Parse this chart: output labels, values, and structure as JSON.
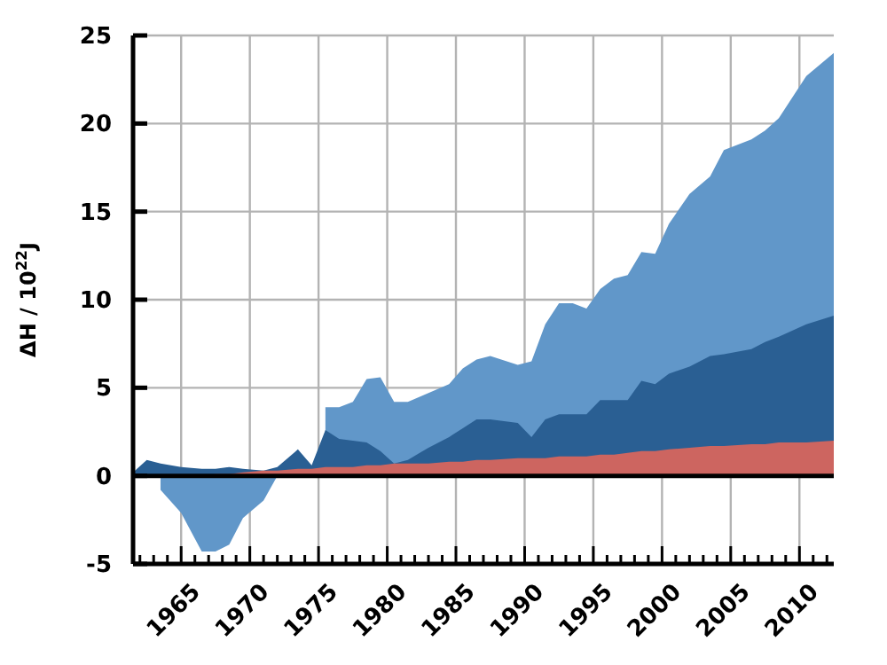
{
  "chart_data": {
    "type": "area",
    "ylabel": "ΔH / 10$^{22}$J",
    "x": [
      1961.5,
      1962.5,
      1963.5,
      1965,
      1966.5,
      1967.5,
      1968.5,
      1969.5,
      1971,
      1972,
      1973.5,
      1974.5,
      1975.5,
      1976.5,
      1977.5,
      1978.5,
      1979.5,
      1980.5,
      1981.5,
      1983,
      1984.5,
      1985.5,
      1986.5,
      1987.5,
      1989.5,
      1990.5,
      1991.5,
      1992.5,
      1993.5,
      1994.5,
      1995.5,
      1996.5,
      1997.5,
      1998.5,
      1999.5,
      2000.5,
      2002,
      2003.5,
      2004.5,
      2006.5,
      2007.5,
      2008.5,
      2010.5,
      2012.5
    ],
    "series": [
      {
        "color": "#6197c9",
        "values": [
          null,
          null,
          -0.8,
          -2.1,
          -4.3,
          -4.3,
          -3.9,
          -2.4,
          -1.4,
          0,
          1.5,
          null,
          3.9,
          3.9,
          4.2,
          5.5,
          5.6,
          4.2,
          4.2,
          4.7,
          5.2,
          6.1,
          6.6,
          6.8,
          6.3,
          6.5,
          8.6,
          9.8,
          9.8,
          9.5,
          10.6,
          11.2,
          11.4,
          12.7,
          12.6,
          14.3,
          16.0,
          17.0,
          18.5,
          19.1,
          19.6,
          20.3,
          22.7,
          24.0
        ]
      },
      {
        "color": "#2a5f93",
        "values": [
          0.2,
          0.9,
          0.7,
          0.5,
          0.4,
          0.4,
          0.5,
          0.4,
          0.3,
          0.5,
          1.5,
          0.6,
          2.6,
          2.1,
          2.0,
          1.9,
          1.4,
          0.7,
          0.9,
          1.6,
          2.2,
          2.7,
          3.2,
          3.2,
          3.0,
          2.2,
          3.2,
          3.5,
          3.5,
          3.5,
          4.3,
          4.3,
          4.3,
          5.4,
          5.2,
          5.8,
          6.2,
          6.8,
          6.9,
          7.2,
          7.6,
          7.9,
          8.6,
          9.1
        ]
      },
      {
        "color": "#cd6560",
        "values": [
          0.1,
          0,
          -0.1,
          0,
          0,
          0.1,
          0.1,
          0.2,
          0.3,
          0.3,
          0.4,
          0.4,
          0.5,
          0.5,
          0.5,
          0.6,
          0.6,
          0.7,
          0.7,
          0.7,
          0.8,
          0.8,
          0.9,
          0.9,
          1.0,
          1.0,
          1.0,
          1.1,
          1.1,
          1.1,
          1.2,
          1.2,
          1.3,
          1.4,
          1.4,
          1.5,
          1.6,
          1.7,
          1.7,
          1.8,
          1.8,
          1.9,
          1.9,
          2.0
        ]
      }
    ],
    "xlim": [
      1961.5,
      2012.5
    ],
    "xticks": [
      {
        "value": 1962,
        "label": null
      },
      {
        "value": 1963,
        "label": null
      },
      {
        "value": 1964,
        "label": null
      },
      1965,
      {
        "value": 1966,
        "label": null
      },
      {
        "value": 1967,
        "label": null
      },
      {
        "value": 1968,
        "label": null
      },
      {
        "value": 1969,
        "label": null
      },
      1970,
      {
        "value": 1971,
        "label": null
      },
      {
        "value": 1972,
        "label": null
      },
      {
        "value": 1973,
        "label": null
      },
      {
        "value": 1974,
        "label": null
      },
      1975,
      {
        "value": 1976,
        "label": null
      },
      {
        "value": 1977,
        "label": null
      },
      {
        "value": 1978,
        "label": null
      },
      {
        "value": 1979,
        "label": null
      },
      1980,
      {
        "value": 1981,
        "label": null
      },
      {
        "value": 1982,
        "label": null
      },
      {
        "value": 1983,
        "label": null
      },
      {
        "value": 1984,
        "label": null
      },
      1985,
      {
        "value": 1986,
        "label": null
      },
      {
        "value": 1987,
        "label": null
      },
      {
        "value": 1988,
        "label": null
      },
      {
        "value": 1989,
        "label": null
      },
      1990,
      {
        "value": 1991,
        "label": null
      },
      {
        "value": 1992,
        "label": null
      },
      {
        "value": 1993,
        "label": null
      },
      {
        "value": 1994,
        "label": null
      },
      1995,
      {
        "value": 1996,
        "label": null
      },
      {
        "value": 1997,
        "label": null
      },
      {
        "value": 1998,
        "label": null
      },
      {
        "value": 1999,
        "label": null
      },
      2000,
      {
        "value": 2001,
        "label": null
      },
      {
        "value": 2002,
        "label": null
      },
      {
        "value": 2003,
        "label": null
      },
      {
        "value": 2004,
        "label": null
      },
      2005,
      {
        "value": 2006,
        "label": null
      },
      {
        "value": 2007,
        "label": null
      },
      {
        "value": 2008,
        "label": null
      },
      {
        "value": 2009,
        "label": null
      },
      2010,
      {
        "value": 2011,
        "label": null
      },
      {
        "value": 2012,
        "label": null
      }
    ],
    "ylim": [
      -5,
      25
    ],
    "yticks": [
      -5,
      0,
      5,
      10,
      15,
      20,
      25
    ],
    "grid": true,
    "ref_lines": [
      {
        "axis": "y",
        "value": 0,
        "color": "#000000"
      }
    ]
  }
}
